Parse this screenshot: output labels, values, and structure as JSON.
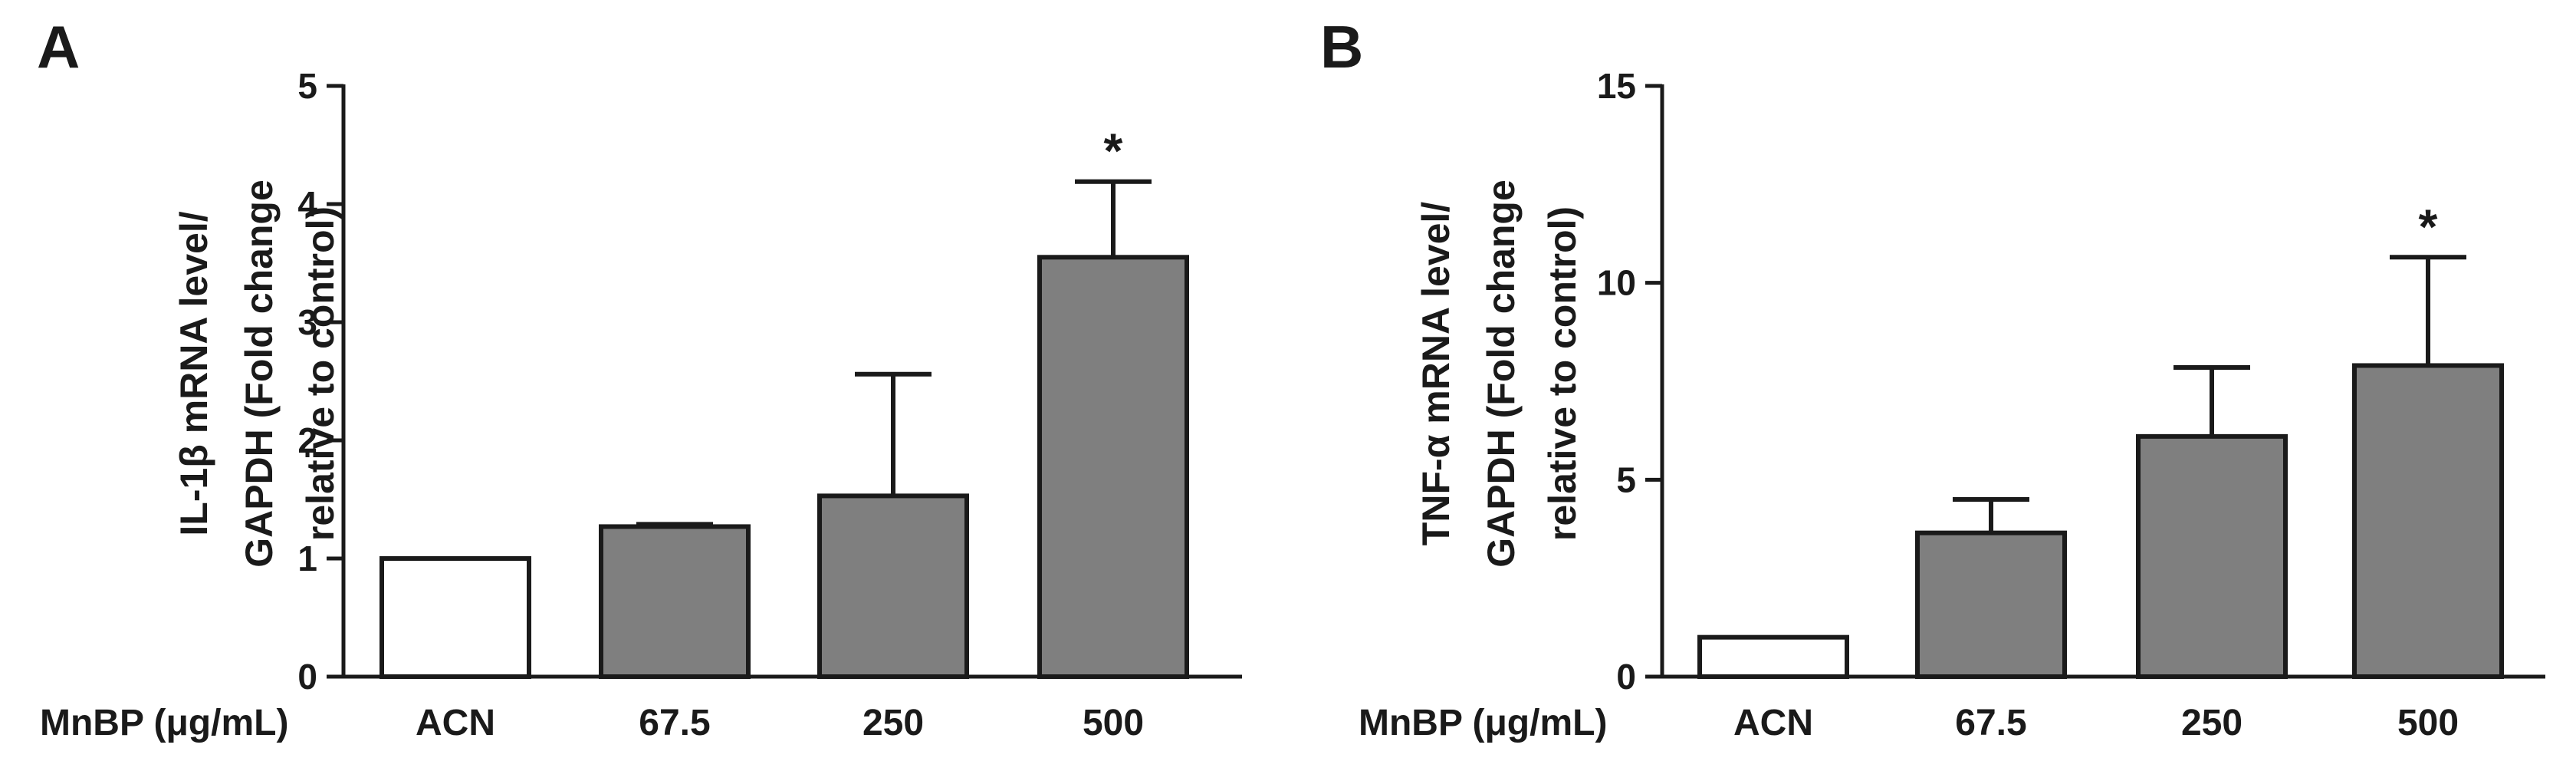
{
  "x_axis_title": "MnBP (μg/mL)",
  "chart_data": [
    {
      "panel": "A",
      "type": "bar",
      "categories": [
        "ACN",
        "67.5",
        "250",
        "500"
      ],
      "values": [
        1.0,
        1.27,
        1.53,
        3.55
      ],
      "error_upper": [
        1.0,
        1.29,
        2.56,
        4.19
      ],
      "fills": [
        "#ffffff",
        "#7f7f7f",
        "#7f7f7f",
        "#7f7f7f"
      ],
      "significance": [
        "",
        "",
        "",
        "*"
      ],
      "ylabel_lines": [
        "IL-1β mRNA level/",
        "GAPDH (Fold change",
        "relative to control)"
      ],
      "ylim": [
        0,
        5
      ],
      "yticks": [
        0,
        1,
        2,
        3,
        4,
        5
      ],
      "grid": false
    },
    {
      "panel": "B",
      "type": "bar",
      "categories": [
        "ACN",
        "67.5",
        "250",
        "500"
      ],
      "values": [
        1.0,
        3.65,
        6.1,
        7.9
      ],
      "error_upper": [
        1.0,
        4.5,
        7.85,
        10.65
      ],
      "fills": [
        "#ffffff",
        "#7f7f7f",
        "#7f7f7f",
        "#7f7f7f"
      ],
      "significance": [
        "",
        "",
        "",
        "*"
      ],
      "ylabel_lines": [
        "TNF-α mRNA level/",
        "GAPDH (Fold change",
        "relative to control)"
      ],
      "ylim": [
        0,
        15
      ],
      "yticks": [
        0,
        5,
        10,
        15
      ],
      "grid": false
    }
  ]
}
